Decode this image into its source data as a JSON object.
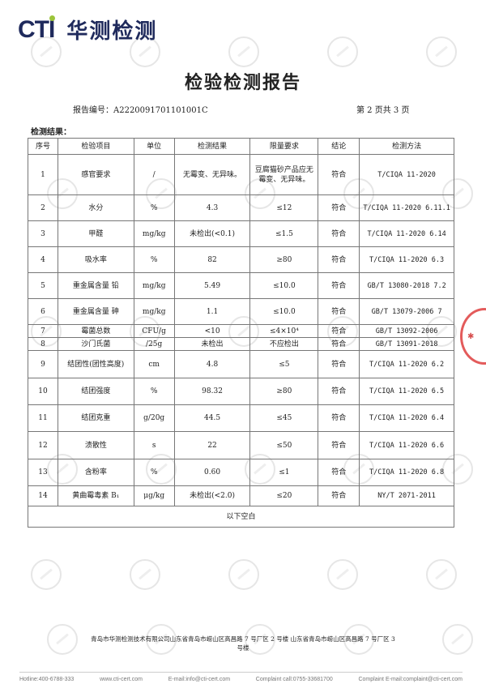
{
  "logo": {
    "brand": "CTI",
    "name_cn": "华测检测"
  },
  "watermark": "CTI",
  "title": "检验检测报告",
  "report_no": "报告编号：A2220091701101001C",
  "page_info": "第 2 页共 3 页",
  "section_title": "检测结果：",
  "table": {
    "headers": [
      "序号",
      "检验项目",
      "单位",
      "检测结果",
      "限量要求",
      "结论",
      "检测方法"
    ],
    "rows": [
      [
        "1",
        "感官要求",
        "/",
        "无霉变、无异味。",
        "豆腐猫砂产品应无霉变、无异味。",
        "符合",
        "T/CIQA 11-2020"
      ],
      [
        "2",
        "水分",
        "%",
        "4.3",
        "≤12",
        "符合",
        "T/CIQA 11-2020 6.11.1"
      ],
      [
        "3",
        "甲醛",
        "mg/kg",
        "未检出(<0.1)",
        "≤1.5",
        "符合",
        "T/CIQA 11-2020 6.14"
      ],
      [
        "4",
        "吸水率",
        "%",
        "82",
        "≥80",
        "符合",
        "T/CIQA 11-2020 6.3"
      ],
      [
        "5",
        "重金属含量 铅",
        "mg/kg",
        "5.49",
        "≤10.0",
        "符合",
        "GB/T 13080-2018 7.2"
      ],
      [
        "6",
        "重金属含量 砷",
        "mg/kg",
        "1.1",
        "≤10.0",
        "符合",
        "GB/T 13079-2006 7"
      ],
      [
        "7",
        "霉菌总数",
        "CFU/g",
        "<10",
        "≤4×10⁴",
        "符合",
        "GB/T 13092-2006"
      ],
      [
        "8",
        "沙门氏菌",
        "/25g",
        "未检出",
        "不应检出",
        "符合",
        "GB/T 13091-2018"
      ],
      [
        "9",
        "结团性(团性高度)",
        "cm",
        "4.8",
        "≤5",
        "符合",
        "T/CIQA 11-2020 6.2"
      ],
      [
        "10",
        "结团强度",
        "%",
        "98.32",
        "≥80",
        "符合",
        "T/CIQA 11-2020 6.5"
      ],
      [
        "11",
        "结团克重",
        "g/20g",
        "44.5",
        "≤45",
        "符合",
        "T/CIQA 11-2020 6.4"
      ],
      [
        "12",
        "溃散性",
        "s",
        "22",
        "≤50",
        "符合",
        "T/CIQA 11-2020 6.6"
      ],
      [
        "13",
        "含粉率",
        "%",
        "0.60",
        "≤1",
        "符合",
        "T/CIQA 11-2020 6.8"
      ],
      [
        "14",
        "黄曲霉毒素 B₁",
        "μg/kg",
        "未检出(<2.0)",
        "≤20",
        "符合",
        "NY/T 2071-2011"
      ]
    ],
    "footer": "以下空白"
  },
  "address": "青岛市华测检测技术有限公司山东省青岛市崂山区高昌路 7 号厂区 2 号楼  山东省青岛市崂山区高昌路 7 号厂区 3 号楼",
  "contact": [
    "Hotline:400-6788-333",
    "www.cti-cert.com",
    "E-mail:info@cti-cert.com",
    "Complaint call:0755-33681700",
    "Complaint E-mail:complaint@cti-cert.com"
  ],
  "stamp_color": "#d33333",
  "brand_color": "#1f2a5c",
  "accent_color": "#9bc43a"
}
